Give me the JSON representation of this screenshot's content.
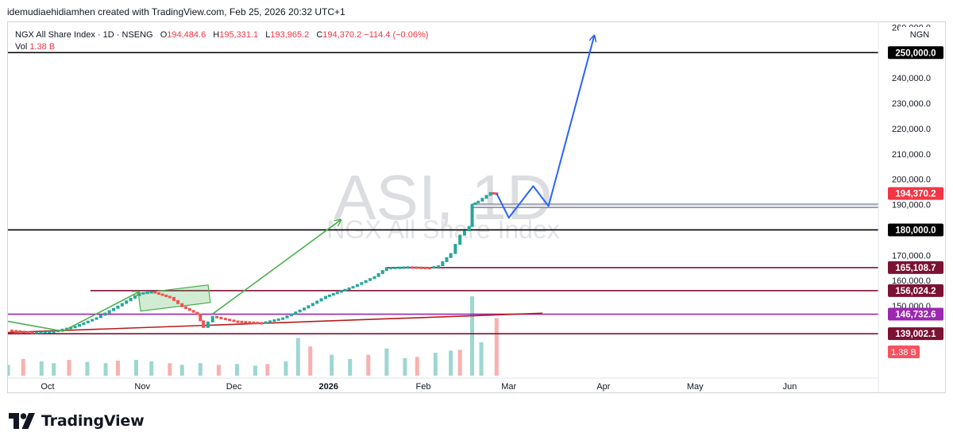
{
  "header": {
    "attribution": "idemudiaehidiamhen created with TradingView.com, Feb 25, 2026 20:32 UTC+1"
  },
  "legend": {
    "symbol": "NGX All Share Index · 1D · NSENG",
    "o_label": "O",
    "o_value": "194,484.6",
    "h_label": "H",
    "h_value": "195,331.1",
    "l_label": "L",
    "l_value": "193,965.2",
    "c_label": "C",
    "c_value": "194,370.2",
    "change": "−114.4 (−0.06%)",
    "vol_label": "Vol",
    "vol_value": "1.38 B"
  },
  "currency": "NGN",
  "watermark": {
    "main": "ASI, 1D",
    "sub": "NGX All Share Index"
  },
  "brand": {
    "name": "TradingView"
  },
  "colors": {
    "up": "#26a69a",
    "down": "#ef5350",
    "projection": "#2962ff",
    "green_arrow": "#4caf50",
    "level_black": "#000000",
    "level_maroon": "#7b1234",
    "level_purple": "#9c27b0",
    "trendline": "#b71c1c",
    "price_label": "#f23645"
  },
  "chart_data": {
    "type": "candlestick",
    "title": "",
    "y_scale": "linear",
    "ylim": [
      124000,
      262000
    ],
    "x_axis": {
      "start": "2025-09-18",
      "end": "2026-06-30",
      "ticks": [
        {
          "date": "2025-10-01",
          "label": "Oct",
          "bold": false
        },
        {
          "date": "2025-11-01",
          "label": "Nov",
          "bold": false
        },
        {
          "date": "2025-12-01",
          "label": "Dec",
          "bold": false
        },
        {
          "date": "2026-01-01",
          "label": "2026",
          "bold": true
        },
        {
          "date": "2026-02-01",
          "label": "Feb",
          "bold": false
        },
        {
          "date": "2026-03-01",
          "label": "Mar",
          "bold": false
        },
        {
          "date": "2026-04-01",
          "label": "Apr",
          "bold": false
        },
        {
          "date": "2026-05-01",
          "label": "May",
          "bold": false
        },
        {
          "date": "2026-06-01",
          "label": "Jun",
          "bold": false
        }
      ]
    },
    "y_ticks": [
      {
        "value": 150000,
        "label": "150,000.0"
      },
      {
        "value": 160000,
        "label": "160,000.0"
      },
      {
        "value": 170000,
        "label": "170,000.0"
      },
      {
        "value": 190000,
        "label": "190,000.0"
      },
      {
        "value": 200000,
        "label": "200,000.0"
      },
      {
        "value": 210000,
        "label": "210,000.0"
      },
      {
        "value": 220000,
        "label": "220,000.0"
      },
      {
        "value": 230000,
        "label": "230,000.0"
      },
      {
        "value": 240000,
        "label": "240,000.0"
      },
      {
        "value": 260000,
        "label": "260,000.0"
      }
    ],
    "price_series": [
      {
        "date": "2025-09-18",
        "close": 140300
      },
      {
        "date": "2025-09-26",
        "close": 139400
      },
      {
        "date": "2025-10-03",
        "close": 139900
      },
      {
        "date": "2025-10-10",
        "close": 141800
      },
      {
        "date": "2025-10-17",
        "close": 145200
      },
      {
        "date": "2025-10-24",
        "close": 149800
      },
      {
        "date": "2025-10-31",
        "close": 154900
      },
      {
        "date": "2025-11-04",
        "close": 155500
      },
      {
        "date": "2025-11-10",
        "close": 153200
      },
      {
        "date": "2025-11-14",
        "close": 149500
      },
      {
        "date": "2025-11-19",
        "close": 146600
      },
      {
        "date": "2025-11-21",
        "close": 141300
      },
      {
        "date": "2025-11-24",
        "close": 145700
      },
      {
        "date": "2025-12-01",
        "close": 143900
      },
      {
        "date": "2025-12-10",
        "close": 143200
      },
      {
        "date": "2025-12-17",
        "close": 145100
      },
      {
        "date": "2025-12-24",
        "close": 149000
      },
      {
        "date": "2025-12-31",
        "close": 153600
      },
      {
        "date": "2026-01-09",
        "close": 157500
      },
      {
        "date": "2026-01-16",
        "close": 161400
      },
      {
        "date": "2026-01-20",
        "close": 165000
      },
      {
        "date": "2026-01-27",
        "close": 165300
      },
      {
        "date": "2026-02-03",
        "close": 165000
      },
      {
        "date": "2026-02-06",
        "close": 165700
      },
      {
        "date": "2026-02-10",
        "close": 170500
      },
      {
        "date": "2026-02-13",
        "close": 177800
      },
      {
        "date": "2026-02-16",
        "close": 181200
      },
      {
        "date": "2026-02-17",
        "close": 189900
      },
      {
        "date": "2026-02-19",
        "close": 191200
      },
      {
        "date": "2026-02-23",
        "close": 194600
      },
      {
        "date": "2026-02-25",
        "close": 194370.2
      }
    ],
    "volume_series": [
      {
        "date": "2025-09-18",
        "volume": 0.26
      },
      {
        "date": "2025-09-23",
        "volume": 0.4
      },
      {
        "date": "2025-09-29",
        "volume": 0.34
      },
      {
        "date": "2025-10-03",
        "volume": 0.3
      },
      {
        "date": "2025-10-08",
        "volume": 0.38
      },
      {
        "date": "2025-10-14",
        "volume": 0.33
      },
      {
        "date": "2025-10-20",
        "volume": 0.3
      },
      {
        "date": "2025-10-24",
        "volume": 0.36
      },
      {
        "date": "2025-10-30",
        "volume": 0.38
      },
      {
        "date": "2025-11-04",
        "volume": 0.34
      },
      {
        "date": "2025-11-10",
        "volume": 0.3
      },
      {
        "date": "2025-11-14",
        "volume": 0.26
      },
      {
        "date": "2025-11-20",
        "volume": 0.3
      },
      {
        "date": "2025-11-26",
        "volume": 0.26
      },
      {
        "date": "2025-12-02",
        "volume": 0.28
      },
      {
        "date": "2025-12-08",
        "volume": 0.24
      },
      {
        "date": "2025-12-12",
        "volume": 0.28
      },
      {
        "date": "2025-12-18",
        "volume": 0.34
      },
      {
        "date": "2025-12-22",
        "volume": 0.9
      },
      {
        "date": "2025-12-26",
        "volume": 0.7
      },
      {
        "date": "2026-01-02",
        "volume": 0.5
      },
      {
        "date": "2026-01-08",
        "volume": 0.4
      },
      {
        "date": "2026-01-14",
        "volume": 0.5
      },
      {
        "date": "2026-01-20",
        "volume": 0.65
      },
      {
        "date": "2026-01-26",
        "volume": 0.42
      },
      {
        "date": "2026-01-30",
        "volume": 0.45
      },
      {
        "date": "2026-02-05",
        "volume": 0.55
      },
      {
        "date": "2026-02-10",
        "volume": 0.6
      },
      {
        "date": "2026-02-13",
        "volume": 0.62
      },
      {
        "date": "2026-02-17",
        "volume": 1.9
      },
      {
        "date": "2026-02-20",
        "volume": 0.8
      },
      {
        "date": "2026-02-25",
        "volume": 1.38
      }
    ],
    "volume_max": 1.9,
    "current_price": {
      "value": 194370.2,
      "label": "194,370.2"
    },
    "current_volume_label": "1.38 B",
    "horizontal_levels": [
      {
        "value": 250000,
        "label": "250,000.0",
        "color": "#000000",
        "label_bg": "#000000"
      },
      {
        "value": 180000,
        "label": "180,000.0",
        "color": "#000000",
        "label_bg": "#000000"
      },
      {
        "value": 165108.7,
        "label": "165,108.7",
        "color": "#7b1234",
        "label_bg": "#7b1234",
        "from": "2026-01-20"
      },
      {
        "value": 156024.2,
        "label": "156,024.2",
        "color": "#7b1234",
        "label_bg": "#7b1234",
        "from": "2025-10-15"
      },
      {
        "value": 146732.6,
        "label": "146,732.6",
        "color": "#9c27b0",
        "label_bg": "#9c27b0"
      },
      {
        "value": 139002.1,
        "label": "139,002.1",
        "color": "#7b1234",
        "label_bg": "#7b1234"
      }
    ],
    "support_zone": {
      "from": "2026-02-17",
      "top": 190200,
      "bottom": 188800
    },
    "trendline": {
      "from": {
        "date": "2025-09-18",
        "value": 139500
      },
      "to": {
        "date": "2026-03-12",
        "value": 147100
      }
    },
    "consolidation_box": {
      "x1": "2025-10-31",
      "x2": "2025-11-23",
      "y_top": 156600,
      "y_bottom": 149600
    },
    "green_arrows": [
      {
        "points": [
          {
            "date": "2025-09-18",
            "value": 143900
          },
          {
            "date": "2025-10-06",
            "value": 140000
          },
          {
            "date": "2025-10-31",
            "value": 155600
          }
        ]
      },
      {
        "points": [
          {
            "date": "2025-11-24",
            "value": 146800
          },
          {
            "date": "2026-01-05",
            "value": 184000
          }
        ]
      }
    ],
    "projection_path": [
      {
        "date": "2026-02-25",
        "value": 194400
      },
      {
        "date": "2026-03-01",
        "value": 184800
      },
      {
        "date": "2026-03-09",
        "value": 197300
      },
      {
        "date": "2026-03-14",
        "value": 189400
      },
      {
        "date": "2026-03-29",
        "value": 256800
      }
    ]
  }
}
